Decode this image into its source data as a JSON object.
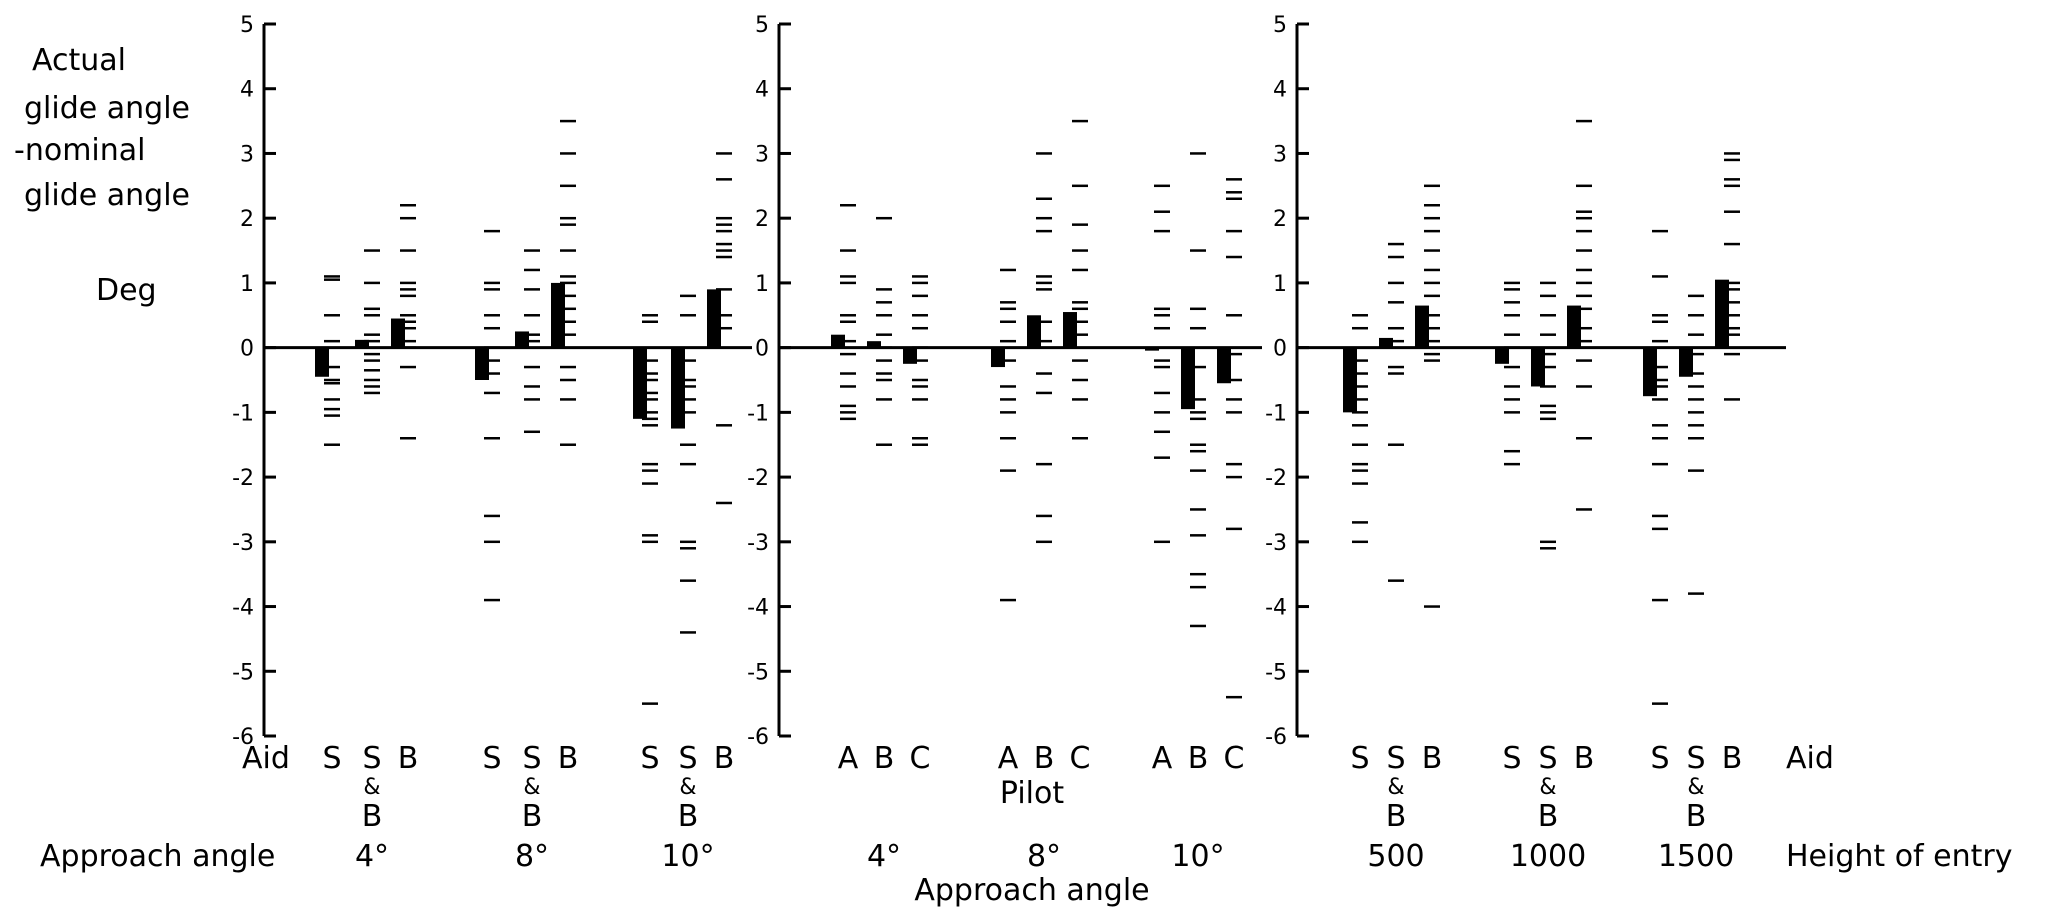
{
  "chart_data": {
    "type": "scatter",
    "y_axis_label_lines": [
      "Actual",
      "glide angle",
      "-nominal",
      "glide angle"
    ],
    "y_unit": "Deg",
    "ylim": [
      -6,
      5
    ],
    "yticks": [
      "5",
      "4",
      "3",
      "2",
      "1",
      "0",
      "-1",
      "-2",
      "-3",
      "-4",
      "-5",
      "-6"
    ],
    "panels": [
      {
        "category_title": "Aid",
        "group_title": "Approach angle",
        "groups": [
          {
            "label": "4°",
            "columns": [
              {
                "label": "S",
                "sub": "",
                "mean": -0.45,
                "points": [
                  1.1,
                  1.05,
                  0.5,
                  0.1,
                  -0.3,
                  -0.5,
                  -0.55,
                  -0.8,
                  -0.95,
                  -1.05,
                  -1.5
                ]
              },
              {
                "label": "S",
                "sub": "B",
                "mean": 0.12,
                "points": [
                  1.5,
                  1.0,
                  0.6,
                  0.5,
                  0.2,
                  0.1,
                  -0.1,
                  -0.2,
                  -0.35,
                  -0.5,
                  -0.6,
                  -0.7
                ]
              },
              {
                "label": "B",
                "sub": "",
                "mean": 0.45,
                "points": [
                  2.2,
                  2.0,
                  1.5,
                  1.0,
                  0.9,
                  0.8,
                  0.5,
                  0.4,
                  0.3,
                  0.1,
                  0.0,
                  -0.3,
                  -1.4
                ]
              }
            ]
          },
          {
            "label": "8°",
            "columns": [
              {
                "label": "S",
                "sub": "",
                "mean": -0.5,
                "points": [
                  1.8,
                  1.0,
                  0.9,
                  0.5,
                  0.3,
                  0.0,
                  -0.2,
                  -0.4,
                  -0.7,
                  -1.4,
                  -2.6,
                  -3.0,
                  -3.9
                ]
              },
              {
                "label": "S",
                "sub": "B",
                "mean": 0.25,
                "points": [
                  1.5,
                  1.2,
                  0.9,
                  0.5,
                  0.2,
                  0.1,
                  -0.3,
                  -0.6,
                  -0.8,
                  -1.3
                ]
              },
              {
                "label": "B",
                "sub": "",
                "mean": 1.0,
                "points": [
                  3.5,
                  3.0,
                  2.5,
                  2.0,
                  1.9,
                  1.5,
                  1.1,
                  1.0,
                  0.8,
                  0.6,
                  0.4,
                  0.2,
                  -0.3,
                  -0.5,
                  -0.8,
                  -1.5
                ]
              }
            ]
          },
          {
            "label": "10°",
            "columns": [
              {
                "label": "S",
                "sub": "",
                "mean": -1.1,
                "points": [
                  0.5,
                  0.4,
                  -0.2,
                  -0.4,
                  -0.5,
                  -0.7,
                  -0.8,
                  -1.0,
                  -1.1,
                  -1.2,
                  -1.8,
                  -1.9,
                  -2.1,
                  -2.9,
                  -3.0,
                  -5.5
                ]
              },
              {
                "label": "S",
                "sub": "B",
                "mean": -1.25,
                "points": [
                  0.8,
                  0.5,
                  -0.2,
                  -0.5,
                  -0.6,
                  -0.8,
                  -1.0,
                  -1.5,
                  -1.8,
                  -3.0,
                  -3.1,
                  -3.6,
                  -4.4
                ]
              },
              {
                "label": "B",
                "sub": "",
                "mean": 0.9,
                "points": [
                  3.0,
                  2.6,
                  2.0,
                  1.9,
                  1.8,
                  1.6,
                  1.5,
                  1.4,
                  0.9,
                  0.5,
                  0.3,
                  -1.2,
                  -2.4
                ]
              }
            ]
          }
        ]
      },
      {
        "category_title": "Pilot",
        "group_title": "Approach angle",
        "groups": [
          {
            "label": "4°",
            "columns": [
              {
                "label": "A",
                "mean": 0.2,
                "points": [
                  2.2,
                  1.5,
                  1.1,
                  1.0,
                  0.5,
                  0.4,
                  0.1,
                  -0.1,
                  -0.4,
                  -0.6,
                  -0.9,
                  -1.0,
                  -1.1
                ]
              },
              {
                "label": "B",
                "mean": 0.1,
                "points": [
                  2.0,
                  0.9,
                  0.7,
                  0.5,
                  0.2,
                  0.0,
                  -0.2,
                  -0.4,
                  -0.5,
                  -0.8,
                  -1.5
                ]
              },
              {
                "label": "C",
                "mean": -0.25,
                "points": [
                  1.1,
                  1.0,
                  0.8,
                  0.5,
                  0.3,
                  0.0,
                  -0.2,
                  -0.5,
                  -0.6,
                  -0.8,
                  -1.4,
                  -1.5
                ]
              }
            ]
          },
          {
            "label": "8°",
            "columns": [
              {
                "label": "A",
                "mean": -0.3,
                "points": [
                  1.2,
                  0.7,
                  0.6,
                  0.4,
                  0.1,
                  -0.2,
                  -0.6,
                  -0.8,
                  -1.0,
                  -1.4,
                  -1.9,
                  -3.9
                ]
              },
              {
                "label": "B",
                "mean": 0.5,
                "points": [
                  3.0,
                  2.3,
                  2.0,
                  1.8,
                  1.1,
                  1.0,
                  0.9,
                  0.4,
                  0.1,
                  -0.4,
                  -0.7,
                  -1.8,
                  -2.6,
                  -3.0
                ]
              },
              {
                "label": "C",
                "mean": 0.55,
                "points": [
                  3.5,
                  2.5,
                  1.9,
                  1.5,
                  1.2,
                  0.7,
                  0.6,
                  0.4,
                  0.2,
                  -0.2,
                  -0.5,
                  -0.8,
                  -1.4
                ]
              }
            ]
          },
          {
            "label": "10°",
            "columns": [
              {
                "label": "A",
                "mean": 0.0,
                "points": [
                  2.5,
                  2.1,
                  1.8,
                  0.6,
                  0.5,
                  0.3,
                  -0.2,
                  -0.3,
                  -0.7,
                  -1.0,
                  -1.3,
                  -1.7,
                  -3.0
                ]
              },
              {
                "label": "B",
                "mean": -0.95,
                "points": [
                  3.0,
                  1.5,
                  0.6,
                  0.3,
                  -0.3,
                  -0.8,
                  -1.0,
                  -1.1,
                  -1.5,
                  -1.6,
                  -1.9,
                  -2.5,
                  -2.9,
                  -3.5,
                  -3.7,
                  -4.3
                ]
              },
              {
                "label": "C",
                "mean": -0.55,
                "points": [
                  2.6,
                  2.4,
                  2.3,
                  1.8,
                  1.4,
                  0.5,
                  -0.1,
                  -0.5,
                  -0.8,
                  -1.0,
                  -1.8,
                  -2.0,
                  -2.8,
                  -5.4
                ]
              }
            ]
          }
        ]
      },
      {
        "category_title": "Aid",
        "group_title": "Height of entry",
        "groups": [
          {
            "label": "500",
            "columns": [
              {
                "label": "S",
                "sub": "",
                "mean": -1.0,
                "points": [
                  0.5,
                  0.3,
                  -0.2,
                  -0.4,
                  -0.6,
                  -0.8,
                  -1.0,
                  -1.2,
                  -1.5,
                  -1.8,
                  -1.9,
                  -2.1,
                  -2.7,
                  -3.0
                ]
              },
              {
                "label": "S",
                "sub": "B",
                "mean": 0.15,
                "points": [
                  1.6,
                  1.4,
                  1.0,
                  0.7,
                  0.3,
                  0.1,
                  -0.3,
                  -0.4,
                  -1.5,
                  -3.6
                ]
              },
              {
                "label": "B",
                "sub": "",
                "mean": 0.65,
                "points": [
                  2.5,
                  2.2,
                  2.0,
                  1.8,
                  1.5,
                  1.2,
                  1.0,
                  0.8,
                  0.5,
                  0.3,
                  0.1,
                  -0.1,
                  -0.2,
                  -4.0
                ]
              }
            ]
          },
          {
            "label": "1000",
            "columns": [
              {
                "label": "S",
                "sub": "",
                "mean": -0.25,
                "points": [
                  1.0,
                  0.9,
                  0.7,
                  0.5,
                  0.2,
                  0.0,
                  -0.3,
                  -0.6,
                  -0.8,
                  -1.0,
                  -1.6,
                  -1.8
                ]
              },
              {
                "label": "S",
                "sub": "B",
                "mean": -0.6,
                "points": [
                  1.0,
                  0.8,
                  0.5,
                  0.2,
                  -0.1,
                  -0.3,
                  -0.6,
                  -0.9,
                  -1.0,
                  -1.1,
                  -3.0,
                  -3.1
                ]
              },
              {
                "label": "B",
                "sub": "",
                "mean": 0.65,
                "points": [
                  3.5,
                  2.5,
                  2.1,
                  2.0,
                  1.8,
                  1.5,
                  1.2,
                  1.0,
                  0.8,
                  0.6,
                  0.3,
                  0.1,
                  -0.2,
                  -0.6,
                  -1.4,
                  -2.5
                ]
              }
            ]
          },
          {
            "label": "1500",
            "columns": [
              {
                "label": "S",
                "sub": "",
                "mean": -0.75,
                "points": [
                  1.8,
                  1.1,
                  0.5,
                  0.4,
                  0.1,
                  -0.3,
                  -0.5,
                  -0.6,
                  -0.8,
                  -1.2,
                  -1.4,
                  -1.8,
                  -2.6,
                  -2.8,
                  -3.9,
                  -5.5
                ]
              },
              {
                "label": "S",
                "sub": "B",
                "mean": -0.45,
                "points": [
                  0.8,
                  0.5,
                  0.2,
                  -0.1,
                  -0.4,
                  -0.6,
                  -0.8,
                  -1.0,
                  -1.2,
                  -1.4,
                  -1.9,
                  -3.8
                ]
              },
              {
                "label": "B",
                "sub": "",
                "mean": 1.05,
                "points": [
                  3.0,
                  2.9,
                  2.6,
                  2.5,
                  2.1,
                  1.6,
                  1.0,
                  0.9,
                  0.7,
                  0.5,
                  0.3,
                  0.2,
                  -0.1,
                  -0.8
                ]
              }
            ]
          }
        ]
      }
    ]
  }
}
